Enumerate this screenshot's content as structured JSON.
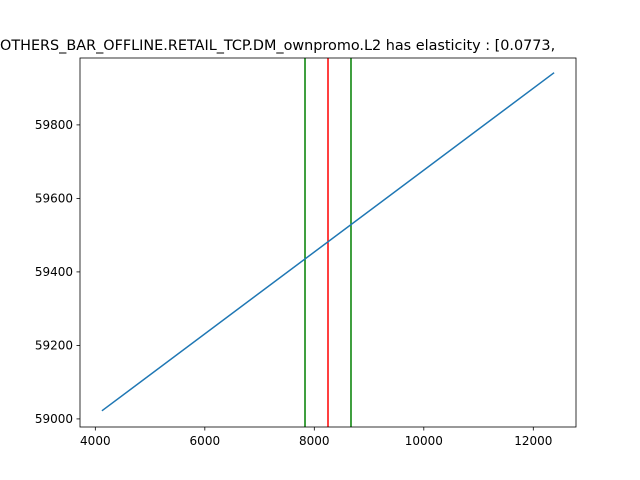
{
  "chart_data": {
    "type": "line",
    "title": "OTHERS_BAR_OFFLINE.RETAIL_TCP.DM_ownpromo.L2 has elasticity : [0.0773,",
    "xlabel": "",
    "ylabel": "",
    "xlim": [
      3720,
      12780
    ],
    "ylim": [
      58978,
      59982
    ],
    "x_ticks": [
      4000,
      6000,
      8000,
      10000,
      12000
    ],
    "y_ticks": [
      59000,
      59200,
      59400,
      59600,
      59800
    ],
    "grid": false,
    "series": [
      {
        "color": "#1f77b4",
        "x": [
          4120,
          12380
        ],
        "y": [
          59022,
          59942
        ]
      }
    ],
    "vlines": [
      {
        "x": 7830,
        "color": "#008000"
      },
      {
        "x": 8250,
        "color": "#ff0000"
      },
      {
        "x": 8670,
        "color": "#008000"
      }
    ]
  }
}
